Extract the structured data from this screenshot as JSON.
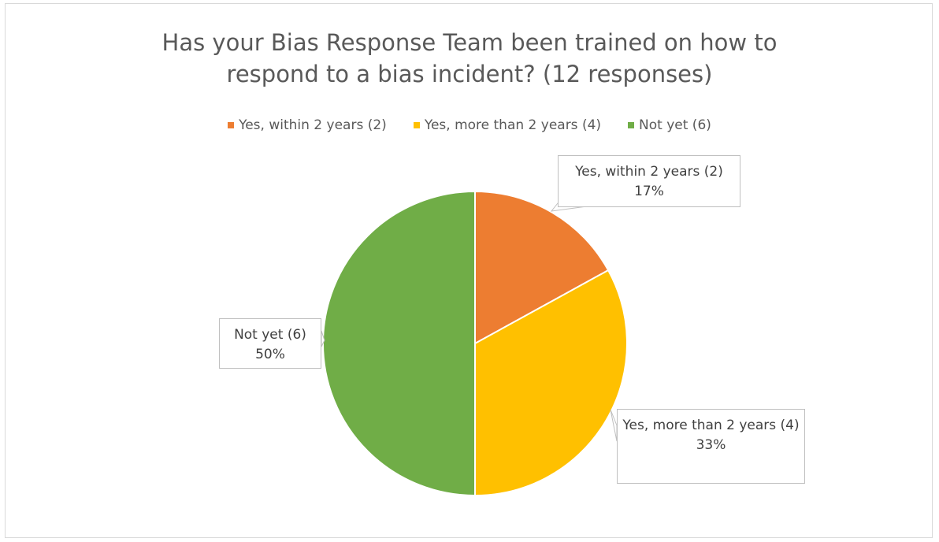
{
  "chart_data": {
    "type": "pie",
    "title": "Has your Bias Response Team been trained on how to respond to a bias incident? (12 responses)",
    "categories": [
      "Yes, within 2 years (2)",
      "Yes, more than 2 years (4)",
      "Not yet (6)"
    ],
    "values": [
      17,
      33,
      50
    ],
    "value_labels": [
      "17%",
      "33%",
      "50%"
    ],
    "colors": [
      "#ed7d31",
      "#ffc000",
      "#70ad47"
    ],
    "legend": "top"
  }
}
